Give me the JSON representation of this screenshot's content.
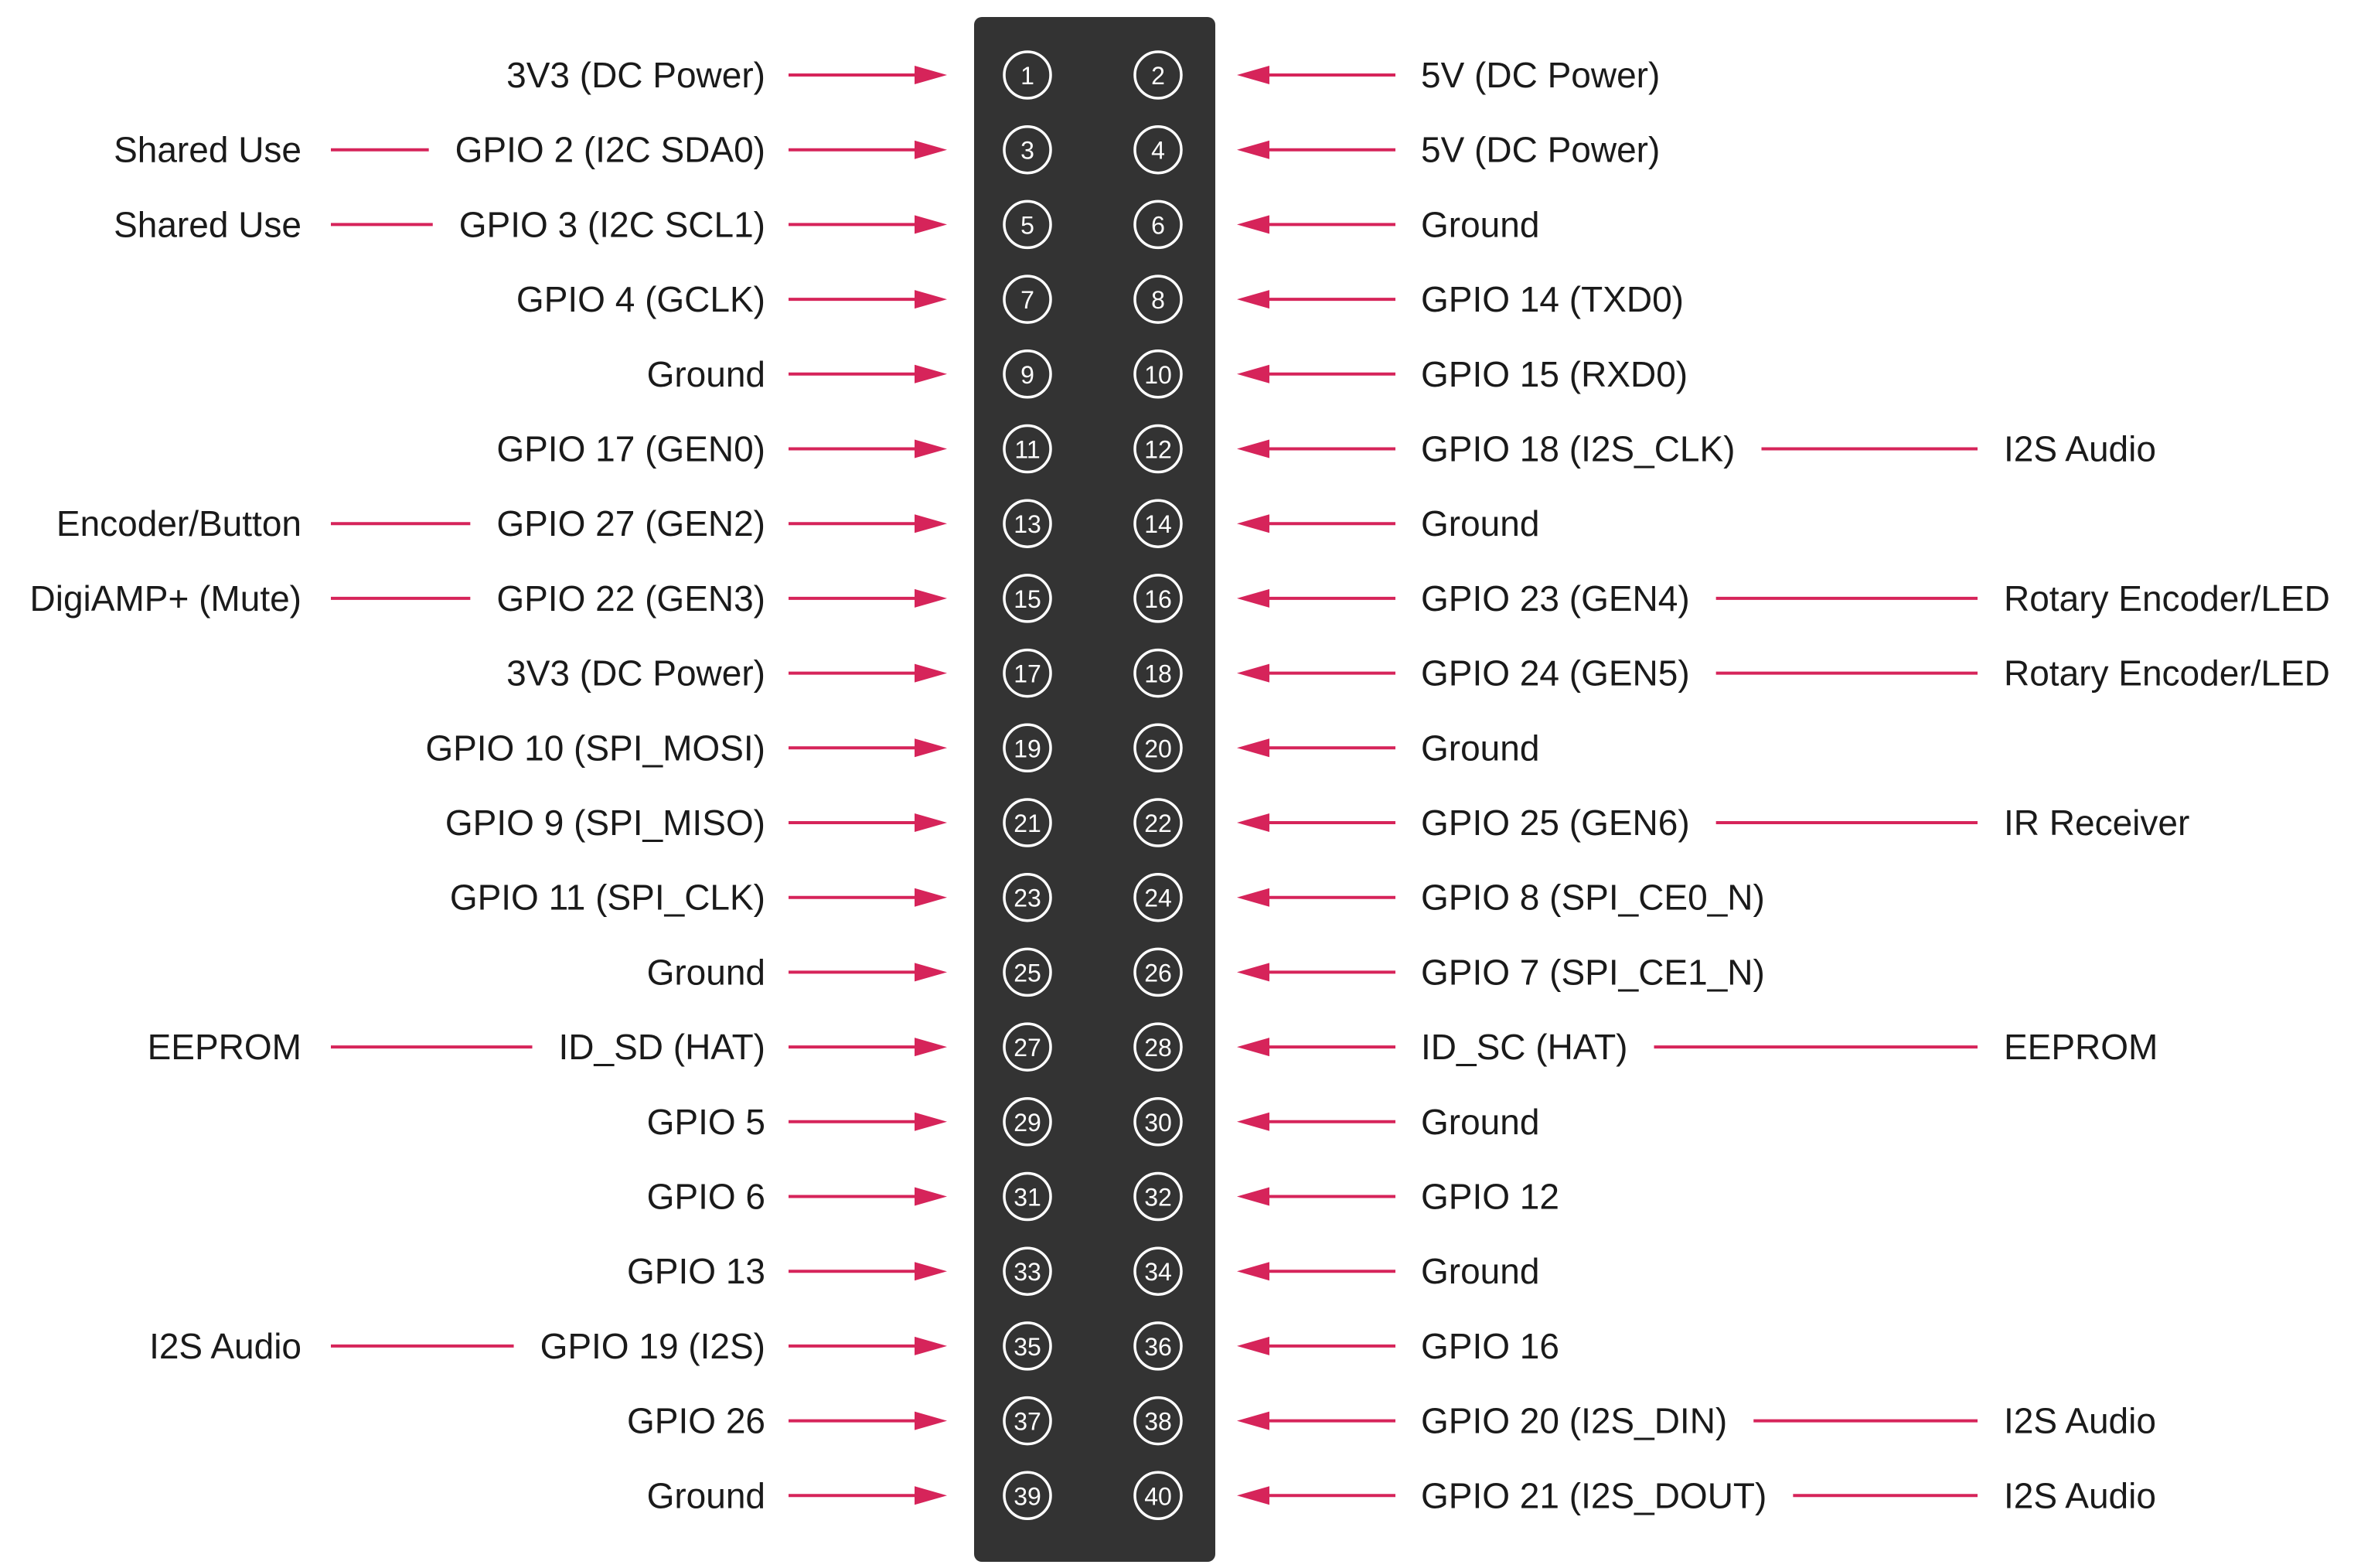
{
  "colors": {
    "header_bg": "#333333",
    "pin_ring": "#ffffff",
    "arrow": "#d6245a",
    "text": "#1a1a1a",
    "background": "#ffffff"
  },
  "pins": [
    {
      "left_num": "1",
      "left_label": "3V3 (DC Power)",
      "left_usage": "",
      "right_num": "2",
      "right_label": "5V (DC Power)",
      "right_usage": ""
    },
    {
      "left_num": "3",
      "left_label": "GPIO 2 (I2C SDA0)",
      "left_usage": "Shared Use",
      "right_num": "4",
      "right_label": "5V (DC Power)",
      "right_usage": ""
    },
    {
      "left_num": "5",
      "left_label": "GPIO 3 (I2C SCL1)",
      "left_usage": "Shared Use",
      "right_num": "6",
      "right_label": "Ground",
      "right_usage": ""
    },
    {
      "left_num": "7",
      "left_label": "GPIO 4 (GCLK)",
      "left_usage": "",
      "right_num": "8",
      "right_label": "GPIO 14 (TXD0)",
      "right_usage": ""
    },
    {
      "left_num": "9",
      "left_label": "Ground",
      "left_usage": "",
      "right_num": "10",
      "right_label": "GPIO 15 (RXD0)",
      "right_usage": ""
    },
    {
      "left_num": "11",
      "left_label": "GPIO 17 (GEN0)",
      "left_usage": "",
      "right_num": "12",
      "right_label": "GPIO 18 (I2S_CLK)",
      "right_usage": "I2S Audio"
    },
    {
      "left_num": "13",
      "left_label": "GPIO 27 (GEN2)",
      "left_usage": "Encoder/Button",
      "right_num": "14",
      "right_label": "Ground",
      "right_usage": ""
    },
    {
      "left_num": "15",
      "left_label": "GPIO 22 (GEN3)",
      "left_usage": "DigiAMP+ (Mute)",
      "right_num": "16",
      "right_label": "GPIO 23 (GEN4)",
      "right_usage": "Rotary Encoder/LED"
    },
    {
      "left_num": "17",
      "left_label": "3V3 (DC Power)",
      "left_usage": "",
      "right_num": "18",
      "right_label": "GPIO 24 (GEN5)",
      "right_usage": "Rotary Encoder/LED"
    },
    {
      "left_num": "19",
      "left_label": "GPIO 10 (SPI_MOSI)",
      "left_usage": "",
      "right_num": "20",
      "right_label": "Ground",
      "right_usage": ""
    },
    {
      "left_num": "21",
      "left_label": "GPIO 9 (SPI_MISO)",
      "left_usage": "",
      "right_num": "22",
      "right_label": "GPIO 25 (GEN6)",
      "right_usage": "IR Receiver"
    },
    {
      "left_num": "23",
      "left_label": "GPIO 11 (SPI_CLK)",
      "left_usage": "",
      "right_num": "24",
      "right_label": "GPIO 8 (SPI_CE0_N)",
      "right_usage": ""
    },
    {
      "left_num": "25",
      "left_label": "Ground",
      "left_usage": "",
      "right_num": "26",
      "right_label": "GPIO 7 (SPI_CE1_N)",
      "right_usage": ""
    },
    {
      "left_num": "27",
      "left_label": "ID_SD (HAT)",
      "left_usage": "EEPROM",
      "right_num": "28",
      "right_label": "ID_SC (HAT)",
      "right_usage": "EEPROM"
    },
    {
      "left_num": "29",
      "left_label": "GPIO 5",
      "left_usage": "",
      "right_num": "30",
      "right_label": "Ground",
      "right_usage": ""
    },
    {
      "left_num": "31",
      "left_label": "GPIO 6",
      "left_usage": "",
      "right_num": "32",
      "right_label": "GPIO 12",
      "right_usage": ""
    },
    {
      "left_num": "33",
      "left_label": "GPIO 13",
      "left_usage": "",
      "right_num": "34",
      "right_label": "Ground",
      "right_usage": ""
    },
    {
      "left_num": "35",
      "left_label": "GPIO 19 (I2S)",
      "left_usage": "I2S Audio",
      "right_num": "36",
      "right_label": "GPIO 16",
      "right_usage": ""
    },
    {
      "left_num": "37",
      "left_label": "GPIO 26",
      "left_usage": "",
      "right_num": "38",
      "right_label": "GPIO 20 (I2S_DIN)",
      "right_usage": "I2S Audio"
    },
    {
      "left_num": "39",
      "left_label": "Ground",
      "left_usage": "",
      "right_num": "40",
      "right_label": "GPIO 21 (I2S_DOUT)",
      "right_usage": "I2S Audio"
    }
  ]
}
